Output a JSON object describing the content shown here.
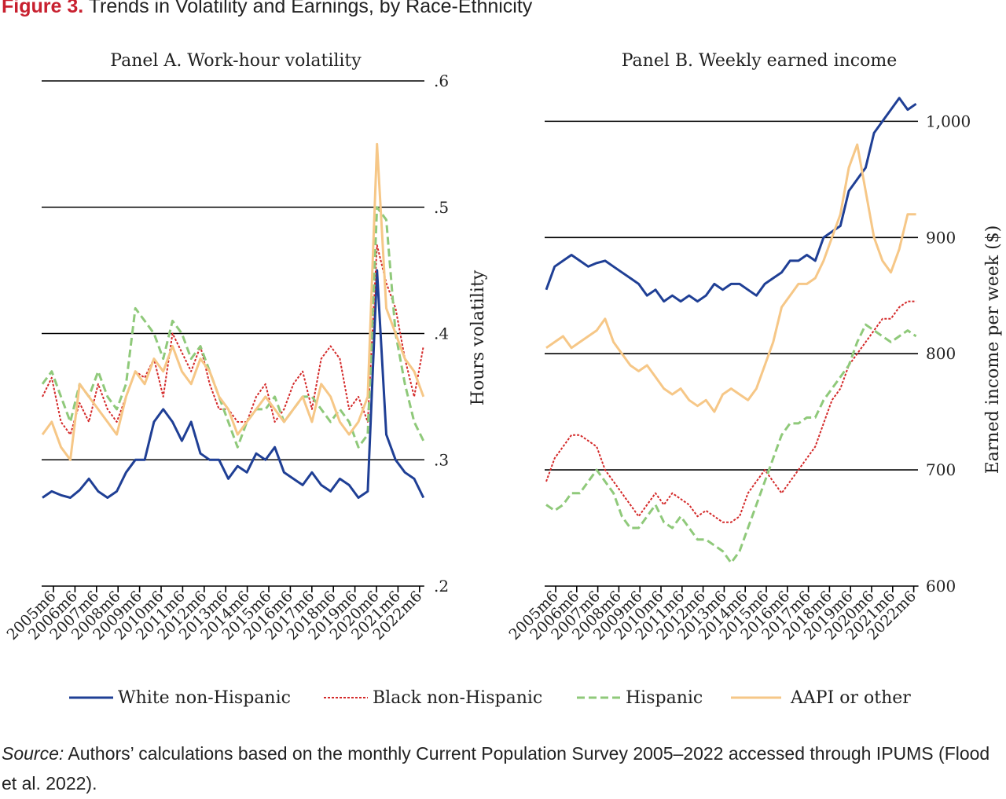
{
  "figure": {
    "label": "Figure 3.",
    "title": "Trends in Volatility and Earnings, by Race-Ethnicity",
    "source_label": "Source:",
    "source_text": "Authors’ calculations based on the monthly Current Population Survey 2005–2022 accessed through IPUMS (Flood et al. 2022)."
  },
  "colors": {
    "white": "#1f3f95",
    "black": "#d42a2a",
    "hispanic": "#8fc97a",
    "aapi": "#f6c787",
    "axis": "#000000",
    "text": "#222222"
  },
  "chart_data": [
    {
      "type": "line",
      "title": "Panel A. Work-hour volatility",
      "ylabel": "Hours volatility",
      "xlabel": "",
      "ylim": [
        0.2,
        0.6
      ],
      "y_ticks": [
        0.2,
        0.3,
        0.4,
        0.5,
        0.6
      ],
      "y_tick_labels": [
        ".2",
        ".3",
        ".4",
        ".5",
        ".6"
      ],
      "grid": "horizontal",
      "x_ticks": [
        "2005m6",
        "2006m6",
        "2007m6",
        "2008m6",
        "2009m6",
        "2010m6",
        "2011m6",
        "2012m6",
        "2013m6",
        "2014m6",
        "2015m6",
        "2016m6",
        "2017m6",
        "2018m6",
        "2019m6",
        "2020m6",
        "2021m6",
        "2022m6"
      ],
      "series": [
        {
          "name": "White non-Hispanic",
          "style": "solid",
          "values": [
            0.27,
            0.275,
            0.272,
            0.27,
            0.276,
            0.285,
            0.275,
            0.27,
            0.275,
            0.29,
            0.3,
            0.3,
            0.33,
            0.34,
            0.33,
            0.315,
            0.33,
            0.305,
            0.3,
            0.3,
            0.285,
            0.295,
            0.29,
            0.305,
            0.3,
            0.31,
            0.29,
            0.285,
            0.28,
            0.29,
            0.28,
            0.275,
            0.285,
            0.28,
            0.27,
            0.275,
            0.45,
            0.32,
            0.3,
            0.29,
            0.285,
            0.27
          ]
        },
        {
          "name": "Black non-Hispanic",
          "style": "dotted",
          "values": [
            0.35,
            0.365,
            0.33,
            0.32,
            0.345,
            0.33,
            0.36,
            0.34,
            0.33,
            0.35,
            0.37,
            0.365,
            0.38,
            0.35,
            0.4,
            0.385,
            0.37,
            0.39,
            0.36,
            0.34,
            0.34,
            0.33,
            0.33,
            0.35,
            0.36,
            0.33,
            0.34,
            0.36,
            0.37,
            0.34,
            0.38,
            0.39,
            0.38,
            0.34,
            0.35,
            0.33,
            0.47,
            0.44,
            0.42,
            0.38,
            0.35,
            0.39
          ]
        },
        {
          "name": "Hispanic",
          "style": "dashed",
          "values": [
            0.36,
            0.37,
            0.35,
            0.33,
            0.36,
            0.35,
            0.37,
            0.35,
            0.34,
            0.36,
            0.42,
            0.41,
            0.4,
            0.38,
            0.41,
            0.4,
            0.38,
            0.39,
            0.37,
            0.35,
            0.33,
            0.31,
            0.33,
            0.34,
            0.34,
            0.35,
            0.33,
            0.34,
            0.35,
            0.35,
            0.34,
            0.33,
            0.34,
            0.33,
            0.31,
            0.32,
            0.5,
            0.49,
            0.4,
            0.36,
            0.33,
            0.315
          ]
        },
        {
          "name": "AAPI or other",
          "style": "solid",
          "values": [
            0.32,
            0.33,
            0.31,
            0.3,
            0.36,
            0.35,
            0.34,
            0.33,
            0.32,
            0.35,
            0.37,
            0.36,
            0.38,
            0.37,
            0.39,
            0.37,
            0.36,
            0.38,
            0.37,
            0.35,
            0.34,
            0.32,
            0.33,
            0.34,
            0.35,
            0.34,
            0.33,
            0.34,
            0.35,
            0.33,
            0.36,
            0.35,
            0.33,
            0.32,
            0.33,
            0.35,
            0.55,
            0.42,
            0.4,
            0.38,
            0.37,
            0.35
          ]
        }
      ]
    },
    {
      "type": "line",
      "title": "Panel B. Weekly earned income",
      "ylabel": "Earned income per week ($)",
      "xlabel": "",
      "ylim": [
        600,
        1030
      ],
      "y_ticks": [
        600,
        700,
        800,
        900,
        1000
      ],
      "y_tick_labels": [
        "600",
        "700",
        "800",
        "900",
        "1,000"
      ],
      "grid": "horizontal",
      "x_ticks": [
        "2005m6",
        "2006m6",
        "2007m6",
        "2008m6",
        "2009m6",
        "2010m6",
        "2011m6",
        "2012m6",
        "2013m6",
        "2014m6",
        "2015m6",
        "2016m6",
        "2017m6",
        "2018m6",
        "2019m6",
        "2020m6",
        "2021m6",
        "2022m6"
      ],
      "series": [
        {
          "name": "White non-Hispanic",
          "style": "solid",
          "values": [
            855,
            875,
            880,
            885,
            880,
            875,
            878,
            880,
            875,
            870,
            865,
            860,
            850,
            855,
            845,
            850,
            845,
            850,
            845,
            850,
            860,
            855,
            860,
            860,
            855,
            850,
            860,
            865,
            870,
            880,
            880,
            885,
            880,
            900,
            905,
            910,
            940,
            950,
            960,
            990,
            1000,
            1010,
            1020,
            1010,
            1015
          ]
        },
        {
          "name": "Black non-Hispanic",
          "style": "dotted",
          "values": [
            690,
            710,
            720,
            730,
            730,
            725,
            720,
            700,
            690,
            680,
            670,
            660,
            670,
            680,
            670,
            680,
            675,
            670,
            660,
            665,
            660,
            655,
            655,
            660,
            680,
            690,
            700,
            690,
            680,
            690,
            700,
            710,
            720,
            740,
            760,
            770,
            790,
            800,
            810,
            820,
            830,
            830,
            840,
            845,
            845
          ]
        },
        {
          "name": "Hispanic",
          "style": "dashed",
          "values": [
            670,
            665,
            670,
            680,
            680,
            690,
            700,
            690,
            680,
            660,
            650,
            650,
            660,
            670,
            655,
            650,
            660,
            650,
            640,
            640,
            635,
            630,
            620,
            630,
            650,
            670,
            690,
            710,
            730,
            740,
            740,
            745,
            745,
            760,
            770,
            780,
            790,
            810,
            825,
            820,
            815,
            810,
            815,
            820,
            815
          ]
        },
        {
          "name": "AAPI or other",
          "style": "solid",
          "values": [
            805,
            810,
            815,
            805,
            810,
            815,
            820,
            830,
            810,
            800,
            790,
            785,
            790,
            780,
            770,
            765,
            770,
            760,
            755,
            760,
            750,
            765,
            770,
            765,
            760,
            770,
            790,
            810,
            840,
            850,
            860,
            860,
            865,
            880,
            900,
            920,
            960,
            980,
            940,
            900,
            880,
            870,
            890,
            920,
            920
          ]
        }
      ]
    }
  ]
}
